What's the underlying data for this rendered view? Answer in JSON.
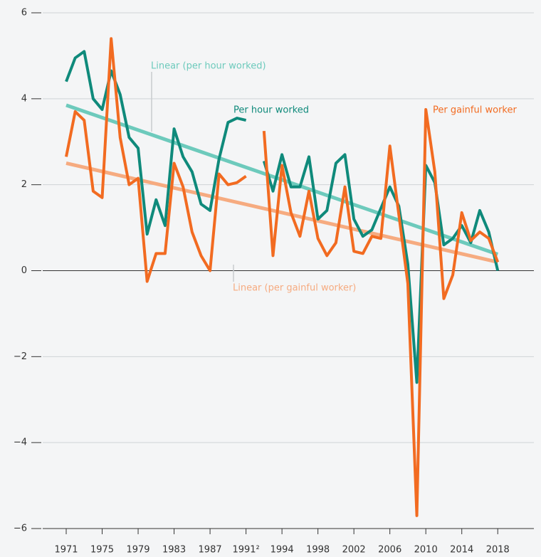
{
  "chart_data": {
    "type": "line",
    "categories": [
      "1971",
      null,
      null,
      null,
      "1975",
      null,
      null,
      null,
      "1979",
      null,
      null,
      null,
      "1983",
      null,
      null,
      null,
      "1987",
      null,
      null,
      null,
      "1991²",
      null,
      null,
      null,
      "1994",
      null,
      null,
      null,
      "1998",
      null,
      null,
      null,
      "2002",
      null,
      null,
      null,
      "2006",
      null,
      null,
      null,
      "2010",
      null,
      null,
      null,
      "2014",
      null,
      null,
      null,
      "2018"
    ],
    "series": [
      {
        "name": "Per hour worked",
        "color": "#0f8a7b",
        "values": [
          4.4,
          4.95,
          5.1,
          4.0,
          3.75,
          4.65,
          4.1,
          3.1,
          2.85,
          0.85,
          1.65,
          1.05,
          3.3,
          2.65,
          2.3,
          1.55,
          1.4,
          2.6,
          3.45,
          3.55,
          3.5,
          null,
          2.55,
          1.85,
          2.7,
          1.95,
          1.95,
          2.65,
          1.2,
          1.4,
          2.5,
          2.7,
          1.2,
          0.8,
          0.95,
          1.45,
          1.95,
          1.5,
          0.15,
          -2.6,
          2.45,
          2.05,
          0.6,
          0.75,
          1.05,
          0.65,
          1.4,
          0.9,
          0.0
        ]
      },
      {
        "name": "Per gainful worker",
        "color": "#f26b21",
        "values": [
          2.65,
          3.7,
          3.5,
          1.85,
          1.7,
          5.4,
          3.1,
          2.0,
          2.15,
          -0.25,
          0.4,
          0.4,
          2.5,
          1.95,
          0.9,
          0.35,
          0.0,
          2.25,
          2.0,
          2.05,
          2.2,
          null,
          3.25,
          0.35,
          2.45,
          1.35,
          0.8,
          1.85,
          0.75,
          0.35,
          0.65,
          1.95,
          0.45,
          0.4,
          0.8,
          0.75,
          2.9,
          1.3,
          -0.3,
          -5.7,
          3.75,
          2.3,
          -0.65,
          -0.1,
          1.35,
          0.7,
          0.9,
          0.75,
          0.2
        ]
      }
    ],
    "trendlines": [
      {
        "name": "Linear (per hour worked)",
        "color": "#6dcabc",
        "values": [
          3.85,
          0.38
        ]
      },
      {
        "name": "Linear (per gainful worker)",
        "color": "#f6ab80",
        "values": [
          2.5,
          0.2
        ]
      }
    ],
    "ylim": [
      -6,
      6
    ],
    "yticks": [
      {
        "value": -6,
        "label": "−6"
      },
      {
        "value": -4,
        "label": "−4"
      },
      {
        "value": -2,
        "label": "−2"
      },
      0,
      2,
      4,
      6
    ],
    "grid": true
  }
}
